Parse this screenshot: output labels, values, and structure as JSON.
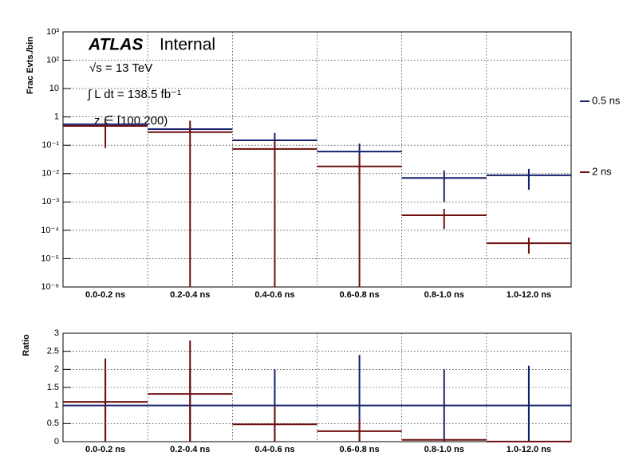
{
  "chart_data": [
    {
      "type": "step",
      "y_label": "Frac Evts./bin",
      "annotations": [
        "ATLAS",
        "Internal",
        "√s = 13 TeV",
        "∫ L dt = 138.5 fb⁻¹",
        "z ∈ [100,200)"
      ],
      "categories": [
        "0.0-0.2 ns",
        "0.2-0.4 ns",
        "0.4-0.6 ns",
        "0.6-0.8 ns",
        "0.8-1.0 ns",
        "1.0-12.0 ns"
      ],
      "log_y": true,
      "grid": true,
      "legend": "right",
      "ylim": [
        1e-06,
        1000
      ],
      "yticks": [
        {
          "value": 1e-06,
          "label": "10⁻⁶"
        },
        {
          "value": 1e-05,
          "label": "10⁻⁵"
        },
        {
          "value": 0.0001,
          "label": "10⁻⁴"
        },
        {
          "value": 0.001,
          "label": "10⁻³"
        },
        {
          "value": 0.01,
          "label": "10⁻²"
        },
        {
          "value": 0.1,
          "label": "10⁻¹"
        },
        1,
        10,
        {
          "value": 100,
          "label": "10²"
        },
        {
          "value": 1000,
          "label": "10³"
        }
      ],
      "series": [
        {
          "name": "0.5 ns",
          "color": "#14206e",
          "values": [
            0.55,
            0.37,
            0.15,
            0.06,
            0.007,
            0.0087
          ],
          "errors": [
            0.1,
            0.08,
            0.12,
            0.055,
            0.006,
            0.006
          ]
        },
        {
          "name": "2 ns",
          "color": "#6e0f0f",
          "values": [
            0.48,
            0.29,
            0.074,
            0.018,
            0.00034,
            3.5e-05
          ],
          "errors": [
            0.4,
            0.45,
            0.08,
            0.03,
            0.00023,
            2e-05
          ]
        }
      ]
    },
    {
      "type": "step",
      "y_label": "Ratio",
      "categories": [
        "0.0-0.2 ns",
        "0.2-0.4 ns",
        "0.4-0.6 ns",
        "0.6-0.8 ns",
        "0.8-1.0 ns",
        "1.0-12.0 ns"
      ],
      "grid": true,
      "ylim": [
        0,
        3
      ],
      "yticks": [
        0,
        0.5,
        1,
        1.5,
        2,
        2.5,
        3
      ],
      "series": [
        {
          "color": "#14206e",
          "values": [
            1,
            1,
            1,
            1,
            1,
            1
          ],
          "errors": [
            1,
            1.05,
            1,
            1.4,
            1,
            1.1
          ]
        },
        {
          "color": "#6e0f0f",
          "values": [
            1.1,
            1.32,
            0.48,
            0.29,
            0.05,
            0.004
          ],
          "errors": [
            1.2,
            1.48,
            0.5,
            0.3,
            0.03,
            0.01
          ]
        }
      ]
    }
  ]
}
